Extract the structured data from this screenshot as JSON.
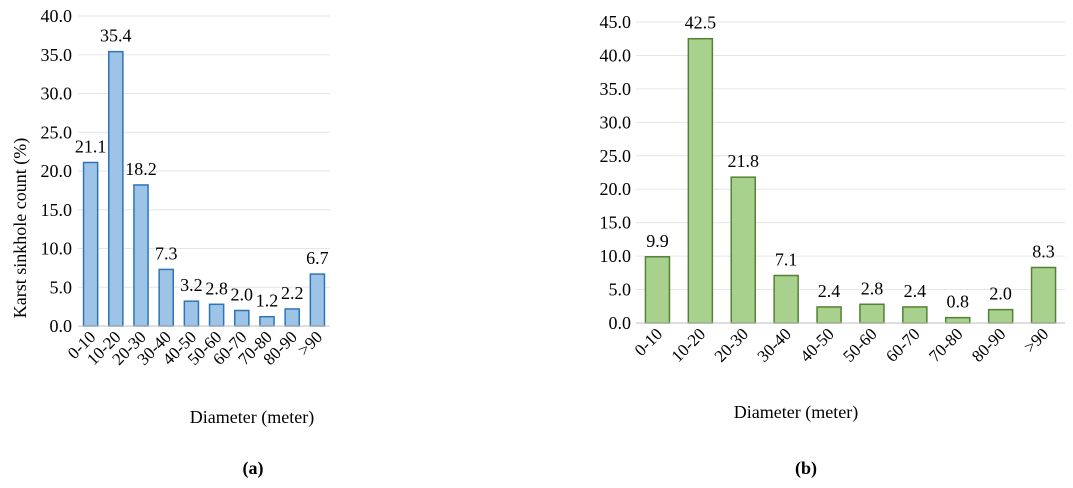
{
  "chart_data": [
    {
      "type": "bar",
      "panel_label": "(a)",
      "categories": [
        "0-10",
        "10-20",
        "20-30",
        "30-40",
        "40-50",
        "50-60",
        "60-70",
        "70-80",
        "80-90",
        ">90"
      ],
      "values": [
        21.1,
        35.4,
        18.2,
        7.3,
        3.2,
        2.8,
        2.0,
        1.2,
        2.2,
        6.7
      ],
      "data_labels": [
        "21.1",
        "35.4",
        "18.2",
        "7.3",
        "3.2",
        "2.8",
        "2.0",
        "1.2",
        "2.2",
        "6.7"
      ],
      "yticks": [
        "0.0",
        "5.0",
        "10.0",
        "15.0",
        "20.0",
        "25.0",
        "30.0",
        "35.0",
        "40.0"
      ],
      "ylim": [
        0,
        40
      ],
      "xlabel": "Diameter (meter)",
      "ylabel": "Karst sinkhole count (%)",
      "grid": true,
      "bar_color": "#9dc3e6",
      "bar_edge": "#2e75b6"
    },
    {
      "type": "bar",
      "panel_label": "(b)",
      "categories": [
        "0-10",
        "10-20",
        "20-30",
        "30-40",
        "40-50",
        "50-60",
        "60-70",
        "70-80",
        "80-90",
        ">90"
      ],
      "values": [
        9.9,
        42.5,
        21.8,
        7.1,
        2.4,
        2.8,
        2.4,
        0.8,
        2.0,
        8.3
      ],
      "data_labels": [
        "9.9",
        "42.5",
        "21.8",
        "7.1",
        "2.4",
        "2.8",
        "2.4",
        "0.8",
        "2.0",
        "8.3"
      ],
      "yticks": [
        "0.0",
        "5.0",
        "10.0",
        "15.0",
        "20.0",
        "25.0",
        "30.0",
        "35.0",
        "40.0",
        "45.0"
      ],
      "ylim": [
        0,
        45
      ],
      "xlabel": "Diameter (meter)",
      "ylabel": "",
      "grid": true,
      "bar_color": "#a9d18e",
      "bar_edge": "#548235"
    }
  ]
}
